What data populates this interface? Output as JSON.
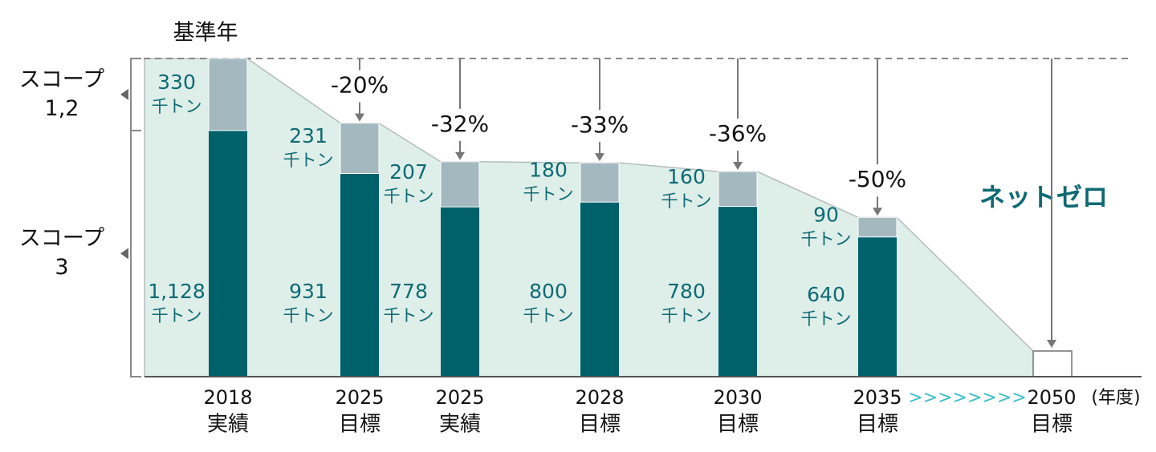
{
  "chart_data": {
    "type": "stacked-bar",
    "categories": [
      "2018",
      "2025",
      "2025",
      "2028",
      "2030",
      "2035",
      "2050"
    ],
    "category_sublabels": [
      "実績",
      "目標",
      "実績",
      "目標",
      "目標",
      "目標",
      "目標"
    ],
    "series": [
      {
        "name": "スコープ 3",
        "color": "#00616b",
        "values": [
          1128,
          931,
          778,
          800,
          780,
          640,
          null
        ],
        "value_labels": [
          "1,128",
          "931",
          "778",
          "800",
          "780",
          "640",
          null
        ]
      },
      {
        "name": "スコープ 1,2",
        "color": "#a3b9bf",
        "values": [
          330,
          231,
          207,
          180,
          160,
          90,
          null
        ]
      }
    ],
    "unit": "千トン",
    "reductions": [
      null,
      -20,
      -32,
      -33,
      -36,
      -50,
      null
    ],
    "reduction_labels": [
      null,
      "-20%",
      "-32%",
      "-33%",
      "-36%",
      "-50%",
      null
    ],
    "baseline_annotation": "基準年",
    "net_zero_annotation": "ネットゼロ",
    "x_separator": ">>>>>>>>",
    "x_axis_label": "(年度)",
    "area_color": "#deeee9"
  }
}
